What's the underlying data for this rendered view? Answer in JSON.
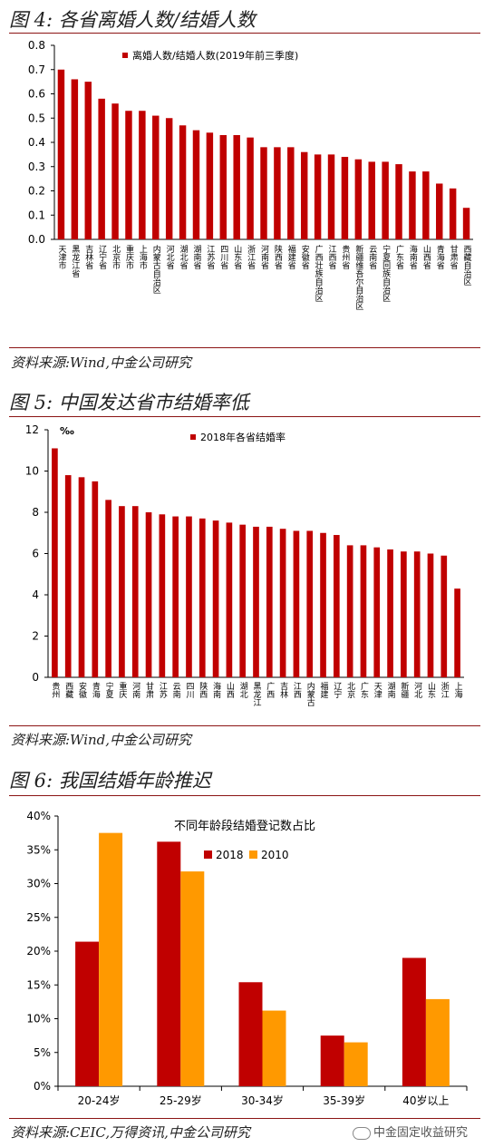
{
  "sections": [
    {
      "title": "图 4:  各省离婚人数/结婚人数",
      "source": "资料来源:Wind,中金公司研究"
    },
    {
      "title": "图 5:  中国发达省市结婚率低",
      "source": "资料来源:Wind,中金公司研究"
    },
    {
      "title": "图 6:  我国结婚年龄推迟",
      "source": "资料来源:CEIC,万得资讯,中金公司研究"
    }
  ],
  "watermark": "中金固定收益研究",
  "colors": {
    "red": "#c00000",
    "orange": "#ff9900",
    "title_rule": "#8b1414"
  },
  "chart_data": [
    {
      "type": "bar",
      "title": "",
      "legend": "离婚人数/结婚人数(2019年前三季度)",
      "ylim": [
        0,
        0.8
      ],
      "yticks": [
        "0.0",
        "0.1",
        "0.2",
        "0.3",
        "0.4",
        "0.5",
        "0.6",
        "0.7",
        "0.8"
      ],
      "categories": [
        "天津市",
        "黑龙江省",
        "吉林省",
        "辽宁省",
        "北京市",
        "重庆市",
        "上海市",
        "内蒙古自治区",
        "河北省",
        "湖北省",
        "湖南省",
        "江苏省",
        "四川省",
        "山东省",
        "浙江省",
        "河南省",
        "陕西省",
        "福建省",
        "安徽省",
        "广西壮族自治区",
        "江西省",
        "贵州省",
        "新疆维吾尔自治区",
        "云南省",
        "宁夏回族自治区",
        "广东省",
        "海南省",
        "山西省",
        "青海省",
        "甘肃省",
        "西藏自治区"
      ],
      "values": [
        0.7,
        0.66,
        0.65,
        0.58,
        0.56,
        0.53,
        0.53,
        0.51,
        0.5,
        0.47,
        0.45,
        0.44,
        0.43,
        0.43,
        0.42,
        0.38,
        0.38,
        0.38,
        0.36,
        0.35,
        0.35,
        0.34,
        0.33,
        0.32,
        0.32,
        0.31,
        0.28,
        0.28,
        0.23,
        0.21,
        0.13
      ]
    },
    {
      "type": "bar",
      "title": "",
      "unit": "‰",
      "legend": "2018年各省结婚率",
      "ylim": [
        0,
        12
      ],
      "yticks": [
        "0",
        "2",
        "4",
        "6",
        "8",
        "10",
        "12"
      ],
      "categories": [
        "贵州",
        "西藏",
        "安徽",
        "青海",
        "宁夏",
        "重庆",
        "河南",
        "甘肃",
        "江苏",
        "云南",
        "四川",
        "陕西",
        "海南",
        "山西",
        "湖北",
        "黑龙江",
        "广西",
        "吉林",
        "江西",
        "内蒙古",
        "福建",
        "辽宁",
        "北京",
        "广东",
        "天津",
        "湖南",
        "新疆",
        "河北",
        "山东",
        "浙江",
        "上海"
      ],
      "values": [
        11.1,
        9.8,
        9.7,
        9.5,
        8.6,
        8.3,
        8.3,
        8.0,
        7.9,
        7.8,
        7.8,
        7.7,
        7.6,
        7.5,
        7.4,
        7.3,
        7.3,
        7.2,
        7.1,
        7.1,
        7.0,
        6.9,
        6.4,
        6.4,
        6.3,
        6.2,
        6.1,
        6.1,
        6.0,
        5.9,
        4.3
      ]
    },
    {
      "type": "bar",
      "title": "不同年龄段结婚登记数占比",
      "ylim": [
        0,
        40
      ],
      "yticks": [
        "0%",
        "5%",
        "10%",
        "15%",
        "20%",
        "25%",
        "30%",
        "35%",
        "40%"
      ],
      "categories": [
        "20-24岁",
        "25-29岁",
        "30-34岁",
        "35-39岁",
        "40岁以上"
      ],
      "series": [
        {
          "name": "2018",
          "values": [
            21.4,
            36.2,
            15.4,
            7.5,
            19.0
          ]
        },
        {
          "name": "2010",
          "values": [
            37.5,
            31.8,
            11.2,
            6.5,
            12.9
          ]
        }
      ]
    }
  ]
}
